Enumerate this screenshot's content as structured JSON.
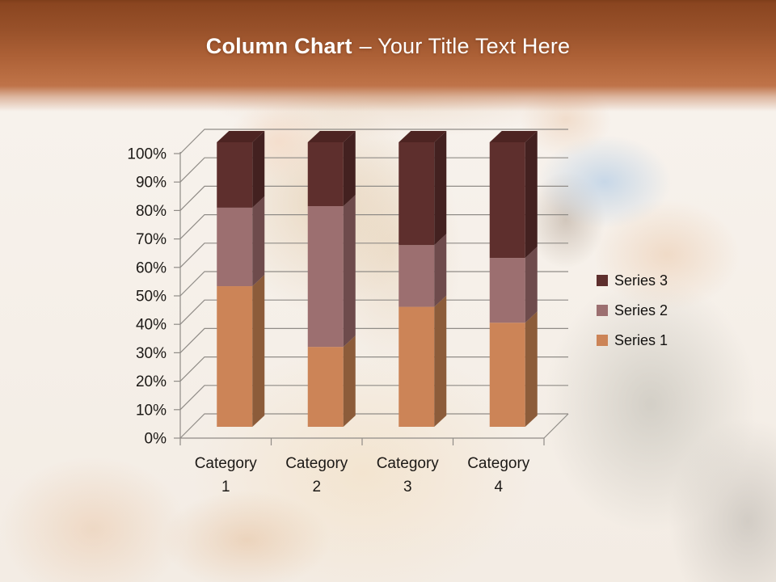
{
  "slide": {
    "title_bold": "Column Chart",
    "title_rest": "– Your Title Text Here",
    "header_gradient_top": "#8a4520",
    "header_gradient_bottom": "#bf7349",
    "title_color": "#ffffff"
  },
  "chart_data": {
    "type": "bar",
    "subtype": "100%-stacked-3d-column",
    "title": "",
    "categories": [
      "Category 1",
      "Category 2",
      "Category 3",
      "Category 4"
    ],
    "series": [
      {
        "name": "Series 1",
        "values": [
          4.3,
          2.5,
          3.5,
          4.5
        ],
        "front": "#cc8457",
        "side": "#8c5c3a",
        "top": "#a96d45"
      },
      {
        "name": "Series 2",
        "values": [
          2.4,
          4.4,
          1.8,
          2.8
        ],
        "front": "#9c6f70",
        "side": "#6e4b4c",
        "top": "#855a5b"
      },
      {
        "name": "Series 3",
        "values": [
          2.0,
          2.0,
          3.0,
          5.0
        ],
        "front": "#5e2f2d",
        "side": "#432120",
        "top": "#4d2422"
      }
    ],
    "stacked_percent_segments": {
      "Category 1": [
        49.4,
        27.6,
        23.0
      ],
      "Category 2": [
        28.1,
        49.4,
        22.5
      ],
      "Category 3": [
        42.2,
        21.7,
        36.1
      ],
      "Category 4": [
        36.6,
        22.8,
        40.6
      ]
    },
    "y_tick_labels": [
      "0%",
      "10%",
      "20%",
      "30%",
      "40%",
      "50%",
      "60%",
      "70%",
      "80%",
      "90%",
      "100%"
    ],
    "ylim": [
      0,
      100
    ],
    "grid": true,
    "grid_color": "#908c87",
    "axis_label_color": "#1c1916",
    "legend_position": "right",
    "legend_order": [
      "Series 3",
      "Series 2",
      "Series 1"
    ]
  }
}
